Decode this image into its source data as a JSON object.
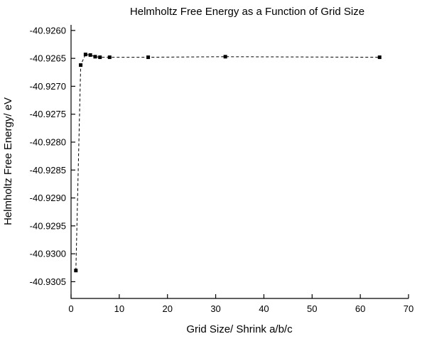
{
  "chart_data": {
    "type": "scatter",
    "title": "Helmholtz Free Energy as a Function of Grid Size",
    "xlabel": "Grid Size/ Shrink a/b/c",
    "ylabel": "Helmholtz Free Energy/ eV",
    "xlim": [
      0,
      70
    ],
    "ylim": [
      -40.9308,
      -40.9259
    ],
    "x_ticks": [
      0,
      10,
      20,
      30,
      40,
      50,
      60,
      70
    ],
    "y_ticks": [
      -40.9305,
      -40.93,
      -40.9295,
      -40.929,
      -40.9285,
      -40.928,
      -40.9275,
      -40.927,
      -40.9265,
      -40.926
    ],
    "y_tick_decimals": 4,
    "grid": false,
    "legend": false,
    "line_style": "dashed",
    "marker": "square",
    "color": "#000000",
    "series": [
      {
        "name": "Helmholtz Free Energy",
        "points": [
          {
            "x": 1,
            "y": -40.9303
          },
          {
            "x": 2,
            "y": -40.92662
          },
          {
            "x": 3,
            "y": -40.92643
          },
          {
            "x": 4,
            "y": -40.92644
          },
          {
            "x": 5,
            "y": -40.92647
          },
          {
            "x": 6,
            "y": -40.92648
          },
          {
            "x": 8,
            "y": -40.92648
          },
          {
            "x": 16,
            "y": -40.92648
          },
          {
            "x": 32,
            "y": -40.92647
          },
          {
            "x": 64,
            "y": -40.92648
          }
        ]
      }
    ]
  }
}
